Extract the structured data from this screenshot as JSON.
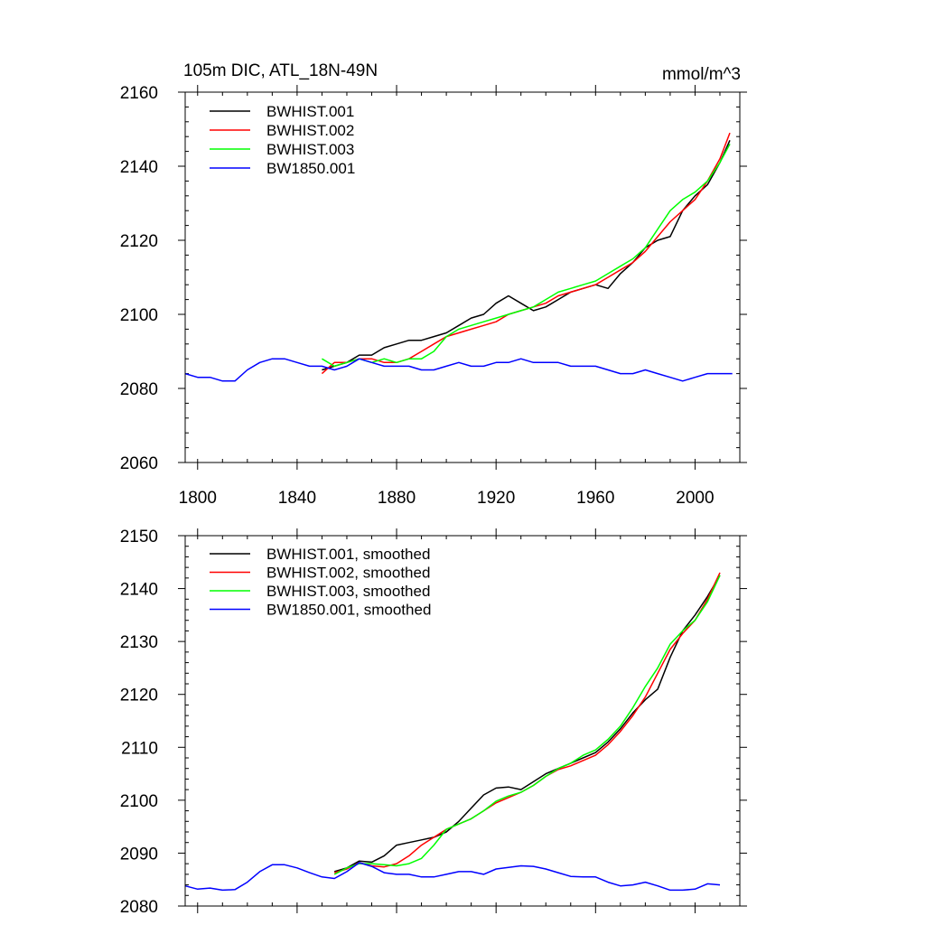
{
  "chart_data": [
    {
      "type": "line",
      "title_left": "105m DIC, ATL_18N-49N",
      "title_right": "mmol/m^3",
      "xlim": [
        1795,
        2018
      ],
      "ylim": [
        2060,
        2160
      ],
      "x_ticks": [
        1800,
        1840,
        1880,
        1920,
        1960,
        2000
      ],
      "x_tick_labels": [
        "1800",
        "1840",
        "1880",
        "1920",
        "1960",
        "2000"
      ],
      "y_ticks": [
        2060,
        2080,
        2100,
        2120,
        2140,
        2160
      ],
      "y_tick_labels": [
        "2060",
        "2080",
        "2100",
        "2120",
        "2140",
        "2160"
      ],
      "legend_position": "top-left",
      "series": [
        {
          "name": "BWHIST.001",
          "color": "#000000",
          "x": [
            1850,
            1855,
            1860,
            1865,
            1870,
            1875,
            1880,
            1885,
            1890,
            1895,
            1900,
            1905,
            1910,
            1915,
            1920,
            1925,
            1930,
            1935,
            1940,
            1945,
            1950,
            1955,
            1960,
            1965,
            1970,
            1975,
            1980,
            1985,
            1990,
            1995,
            2000,
            2005,
            2010,
            2014
          ],
          "y": [
            2085,
            2086,
            2087,
            2089,
            2089,
            2091,
            2092,
            2093,
            2093,
            2094,
            2095,
            2097,
            2099,
            2100,
            2103,
            2105,
            2103,
            2101,
            2102,
            2104,
            2106,
            2107,
            2108,
            2107,
            2111,
            2114,
            2118,
            2120,
            2121,
            2128,
            2132,
            2135,
            2141,
            2147
          ]
        },
        {
          "name": "BWHIST.002",
          "color": "#ff0000",
          "x": [
            1850,
            1855,
            1860,
            1865,
            1870,
            1875,
            1880,
            1885,
            1890,
            1895,
            1900,
            1905,
            1910,
            1915,
            1920,
            1925,
            1930,
            1935,
            1940,
            1945,
            1950,
            1955,
            1960,
            1965,
            1970,
            1975,
            1980,
            1985,
            1990,
            1995,
            2000,
            2005,
            2010,
            2014
          ],
          "y": [
            2084,
            2087,
            2087,
            2088,
            2088,
            2087,
            2087,
            2088,
            2090,
            2092,
            2094,
            2095,
            2096,
            2097,
            2098,
            2100,
            2101,
            2102,
            2103,
            2105,
            2106,
            2107,
            2108,
            2110,
            2112,
            2114,
            2117,
            2121,
            2125,
            2128,
            2131,
            2136,
            2142,
            2149
          ]
        },
        {
          "name": "BWHIST.003",
          "color": "#00ff00",
          "x": [
            1850,
            1855,
            1860,
            1865,
            1870,
            1875,
            1880,
            1885,
            1890,
            1895,
            1900,
            1905,
            1910,
            1915,
            1920,
            1925,
            1930,
            1935,
            1940,
            1945,
            1950,
            1955,
            1960,
            1965,
            1970,
            1975,
            1980,
            1985,
            1990,
            1995,
            2000,
            2005,
            2010,
            2014
          ],
          "y": [
            2088,
            2086,
            2087,
            2088,
            2087,
            2088,
            2087,
            2088,
            2088,
            2090,
            2094,
            2096,
            2097,
            2098,
            2099,
            2100,
            2101,
            2102,
            2104,
            2106,
            2107,
            2108,
            2109,
            2111,
            2113,
            2115,
            2118,
            2123,
            2128,
            2131,
            2133,
            2136,
            2141,
            2146
          ]
        },
        {
          "name": "BW1850.001",
          "color": "#0000ff",
          "x": [
            1795,
            1800,
            1805,
            1810,
            1815,
            1820,
            1825,
            1830,
            1835,
            1840,
            1845,
            1850,
            1855,
            1860,
            1865,
            1870,
            1875,
            1880,
            1885,
            1890,
            1895,
            1900,
            1905,
            1910,
            1915,
            1920,
            1925,
            1930,
            1935,
            1940,
            1945,
            1950,
            1955,
            1960,
            1965,
            1970,
            1975,
            1980,
            1985,
            1990,
            1995,
            2000,
            2005,
            2010,
            2015
          ],
          "y": [
            2084,
            2083,
            2083,
            2082,
            2082,
            2085,
            2087,
            2088,
            2088,
            2087,
            2086,
            2086,
            2085,
            2086,
            2088,
            2087,
            2086,
            2086,
            2086,
            2085,
            2085,
            2086,
            2087,
            2086,
            2086,
            2087,
            2087,
            2088,
            2087,
            2087,
            2087,
            2086,
            2086,
            2086,
            2085,
            2084,
            2084,
            2085,
            2084,
            2083,
            2082,
            2083,
            2084,
            2084,
            2084
          ]
        }
      ]
    },
    {
      "type": "line",
      "xlim": [
        1795,
        2018
      ],
      "ylim": [
        2080,
        2150
      ],
      "x_ticks": [
        1800,
        1840,
        1880,
        1920,
        1960,
        2000
      ],
      "y_ticks": [
        2080,
        2090,
        2100,
        2110,
        2120,
        2130,
        2140,
        2150
      ],
      "y_tick_labels": [
        "2080",
        "2090",
        "2100",
        "2110",
        "2120",
        "2130",
        "2140",
        "2150"
      ],
      "legend_position": "top-left",
      "series": [
        {
          "name": "BWHIST.001, smoothed",
          "color": "#000000",
          "x": [
            1855,
            1860,
            1865,
            1870,
            1875,
            1880,
            1885,
            1890,
            1895,
            1900,
            1905,
            1910,
            1915,
            1920,
            1925,
            1930,
            1935,
            1940,
            1945,
            1950,
            1955,
            1960,
            1965,
            1970,
            1975,
            1980,
            1985,
            1990,
            1995,
            2000,
            2005,
            2010
          ],
          "y": [
            2086.5,
            2087.2,
            2088.5,
            2088.3,
            2089.5,
            2091.5,
            2092.0,
            2092.5,
            2093.0,
            2094.0,
            2096.0,
            2098.5,
            2101.0,
            2102.3,
            2102.5,
            2102.0,
            2103.5,
            2105.0,
            2106.0,
            2107.0,
            2108.0,
            2109.0,
            2111.0,
            2113.5,
            2116.5,
            2119.0,
            2121.0,
            2127.0,
            2132.0,
            2135.0,
            2138.5,
            2142.5
          ]
        },
        {
          "name": "BWHIST.002, smoothed",
          "color": "#ff0000",
          "x": [
            1855,
            1860,
            1865,
            1870,
            1875,
            1880,
            1885,
            1890,
            1895,
            1900,
            1905,
            1910,
            1915,
            1920,
            1925,
            1930,
            1935,
            1940,
            1945,
            1950,
            1955,
            1960,
            1965,
            1970,
            1975,
            1980,
            1985,
            1990,
            1995,
            2000,
            2005,
            2010
          ],
          "y": [
            2086.3,
            2087.0,
            2088.2,
            2087.6,
            2087.4,
            2088.0,
            2089.5,
            2091.5,
            2093.0,
            2094.5,
            2095.5,
            2096.5,
            2098.0,
            2099.5,
            2100.5,
            2101.5,
            2102.8,
            2104.5,
            2105.8,
            2106.5,
            2107.5,
            2108.5,
            2110.5,
            2113.0,
            2116.0,
            2119.5,
            2124.0,
            2128.5,
            2131.5,
            2134.0,
            2138.0,
            2143.0
          ]
        },
        {
          "name": "BWHIST.003, smoothed",
          "color": "#00ff00",
          "x": [
            1855,
            1860,
            1865,
            1870,
            1875,
            1880,
            1885,
            1890,
            1895,
            1900,
            1905,
            1910,
            1915,
            1920,
            1925,
            1930,
            1935,
            1940,
            1945,
            1950,
            1955,
            1960,
            1965,
            1970,
            1975,
            1980,
            1985,
            1990,
            1995,
            2000,
            2005,
            2010
          ],
          "y": [
            2086.0,
            2087.2,
            2088.0,
            2088.0,
            2087.8,
            2087.6,
            2088.0,
            2089.0,
            2091.5,
            2094.5,
            2095.5,
            2096.5,
            2098.0,
            2099.8,
            2100.8,
            2101.5,
            2102.8,
            2104.5,
            2106.0,
            2107.0,
            2108.5,
            2109.5,
            2111.5,
            2114.0,
            2117.5,
            2121.5,
            2125.0,
            2129.5,
            2132.0,
            2134.0,
            2137.5,
            2142.5
          ]
        },
        {
          "name": "BW1850.001, smoothed",
          "color": "#0000ff",
          "x": [
            1795,
            1800,
            1805,
            1810,
            1815,
            1820,
            1825,
            1830,
            1835,
            1840,
            1845,
            1850,
            1855,
            1860,
            1865,
            1870,
            1875,
            1880,
            1885,
            1890,
            1895,
            1900,
            1905,
            1910,
            1915,
            1920,
            1925,
            1930,
            1935,
            1940,
            1945,
            1950,
            1955,
            1960,
            1965,
            1970,
            1975,
            1980,
            1985,
            1990,
            1995,
            2000,
            2005,
            2010
          ],
          "y": [
            2083.8,
            2083.2,
            2083.4,
            2083.0,
            2083.1,
            2084.5,
            2086.5,
            2087.8,
            2087.8,
            2087.2,
            2086.3,
            2085.5,
            2085.2,
            2086.5,
            2088.2,
            2087.5,
            2086.3,
            2086.0,
            2086.0,
            2085.5,
            2085.5,
            2086.0,
            2086.5,
            2086.5,
            2086.0,
            2087.0,
            2087.3,
            2087.6,
            2087.5,
            2087.0,
            2086.3,
            2085.6,
            2085.5,
            2085.5,
            2084.5,
            2083.8,
            2084.0,
            2084.5,
            2083.8,
            2083.0,
            2083.0,
            2083.2,
            2084.2,
            2084.0
          ]
        }
      ]
    }
  ]
}
